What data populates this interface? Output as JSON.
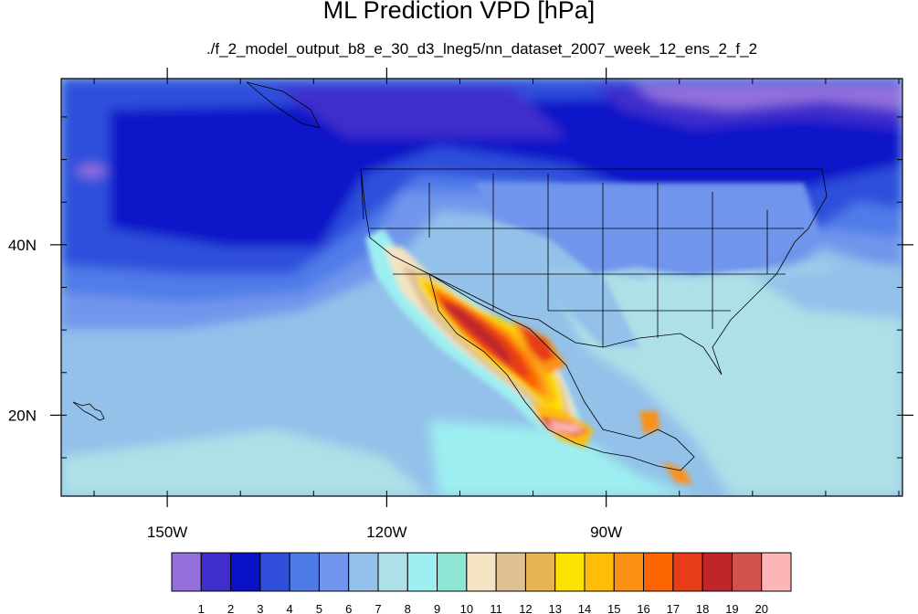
{
  "title": "ML Prediction VPD [hPa]",
  "subtitle": "./f_2_model_output_b8_e_30_d3_lneg5/nn_dataset_2007_week_12_ens_2_f_2",
  "axes": {
    "lon_range": [
      -164.5,
      -49.5
    ],
    "lat_range": [
      10.5,
      59.5
    ],
    "x_ticks": [
      {
        "lon": -150,
        "label": "150W"
      },
      {
        "lon": -120,
        "label": "120W"
      },
      {
        "lon": -90,
        "label": "90W"
      }
    ],
    "y_ticks": [
      {
        "lat": 40,
        "label": "40N"
      },
      {
        "lat": 20,
        "label": "20N"
      }
    ]
  },
  "colorbar": {
    "colors": [
      "#9370db",
      "#3f2ecc",
      "#0a12c8",
      "#2f4fdb",
      "#4f7be8",
      "#7195ec",
      "#93c1ea",
      "#aee0e7",
      "#9deef0",
      "#8ee7d4",
      "#f4e3c2",
      "#dfc090",
      "#e6b450",
      "#fce200",
      "#fdbd08",
      "#fb9114",
      "#fd6402",
      "#e63c17",
      "#bf262c",
      "#d15350",
      "#fdb6b8"
    ],
    "labels": [
      "1",
      "2",
      "3",
      "4",
      "5",
      "6",
      "7",
      "8",
      "9",
      "10",
      "11",
      "12",
      "13",
      "14",
      "15",
      "16",
      "17",
      "18",
      "19",
      "20"
    ]
  }
}
